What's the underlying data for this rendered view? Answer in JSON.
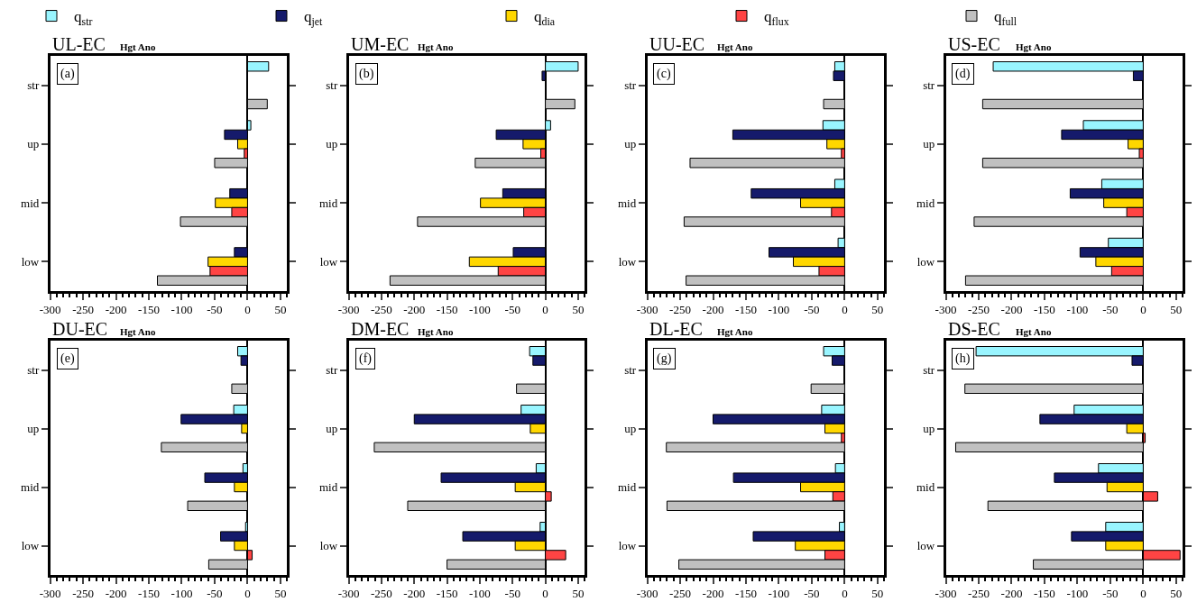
{
  "chart_data": [
    {
      "type": "bar",
      "orientation": "horizontal",
      "title": "UL-EC",
      "subtitle": "Hgt Ano",
      "annotations": [
        "(a)"
      ],
      "categories": [
        "str",
        "up",
        "mid",
        "low"
      ],
      "xlim": [
        -300,
        60
      ],
      "xticks": [
        -300,
        -250,
        -200,
        -150,
        -100,
        -50,
        0,
        50
      ],
      "legend": "top",
      "series": [
        {
          "name": "q$_{str}$",
          "color": "#99f5ff",
          "values": [
            32,
            5,
            null,
            null
          ]
        },
        {
          "name": "q$_{jet}$",
          "color": "#151a6b",
          "values": [
            -1,
            -35,
            -27,
            -20
          ]
        },
        {
          "name": "q$_{dia}$",
          "color": "#ffd700",
          "values": [
            null,
            -15,
            -49,
            -60
          ]
        },
        {
          "name": "q$_{flux}$",
          "color": "#ff4444",
          "values": [
            null,
            -5,
            -24,
            -57
          ]
        },
        {
          "name": "q$_{full}$",
          "color": "#c0c0c0",
          "values": [
            30,
            -50,
            -102,
            -137
          ]
        }
      ]
    },
    {
      "type": "bar",
      "orientation": "horizontal",
      "title": "UM-EC",
      "subtitle": "Hgt Ano",
      "annotations": [
        "(b)"
      ],
      "categories": [
        "str",
        "up",
        "mid",
        "low"
      ],
      "xlim": [
        -300,
        60
      ],
      "xticks": [
        -300,
        -250,
        -200,
        -150,
        -100,
        -50,
        0,
        50
      ],
      "series": [
        {
          "color": "#99f5ff",
          "values": [
            50,
            8,
            null,
            null
          ]
        },
        {
          "color": "#151a6b",
          "values": [
            -5,
            -75,
            -65,
            -49
          ]
        },
        {
          "color": "#ffd700",
          "values": [
            null,
            -34,
            -99,
            -116
          ]
        },
        {
          "color": "#ff4444",
          "values": [
            null,
            -7,
            -33,
            -72
          ]
        },
        {
          "color": "#c0c0c0",
          "values": [
            45,
            -107,
            -195,
            -237
          ]
        }
      ]
    },
    {
      "type": "bar",
      "orientation": "horizontal",
      "title": "UU-EC",
      "subtitle": "Hgt Ano",
      "annotations": [
        "(c)"
      ],
      "categories": [
        "str",
        "up",
        "mid",
        "low"
      ],
      "xlim": [
        -300,
        60
      ],
      "xticks": [
        -300,
        -250,
        -200,
        -150,
        -100,
        -50,
        0,
        50
      ],
      "series": [
        {
          "color": "#99f5ff",
          "values": [
            -15,
            -33,
            -15,
            -10
          ]
        },
        {
          "color": "#151a6b",
          "values": [
            -17,
            -170,
            -142,
            -115
          ]
        },
        {
          "color": "#ffd700",
          "values": [
            null,
            -27,
            -67,
            -78
          ]
        },
        {
          "color": "#ff4444",
          "values": [
            null,
            -5,
            -20,
            -39
          ]
        },
        {
          "color": "#c0c0c0",
          "values": [
            -32,
            -235,
            -244,
            -241
          ]
        }
      ]
    },
    {
      "type": "bar",
      "orientation": "horizontal",
      "title": "US-EC",
      "subtitle": "Hgt Ano",
      "annotations": [
        "(d)"
      ],
      "categories": [
        "str",
        "up",
        "mid",
        "low"
      ],
      "xlim": [
        -300,
        60
      ],
      "xticks": [
        -300,
        -250,
        -200,
        -150,
        -100,
        -50,
        0,
        50
      ],
      "series": [
        {
          "color": "#99f5ff",
          "values": [
            -228,
            -91,
            -63,
            -53
          ]
        },
        {
          "color": "#151a6b",
          "values": [
            -15,
            -124,
            -111,
            -96
          ]
        },
        {
          "color": "#ffd700",
          "values": [
            null,
            -23,
            -60,
            -72
          ]
        },
        {
          "color": "#ff4444",
          "values": [
            null,
            -6,
            -25,
            -48
          ]
        },
        {
          "color": "#c0c0c0",
          "values": [
            -244,
            -244,
            -257,
            -270
          ]
        }
      ]
    },
    {
      "type": "bar",
      "orientation": "horizontal",
      "title": "DU-EC",
      "subtitle": "Hgt Ano",
      "annotations": [
        "(e)"
      ],
      "categories": [
        "str",
        "up",
        "mid",
        "low"
      ],
      "xlim": [
        -300,
        60
      ],
      "xticks": [
        -300,
        -250,
        -200,
        -150,
        -100,
        -50,
        0,
        50
      ],
      "series": [
        {
          "color": "#99f5ff",
          "values": [
            -15,
            -21,
            -7,
            -3
          ]
        },
        {
          "color": "#151a6b",
          "values": [
            -10,
            -101,
            -65,
            -41
          ]
        },
        {
          "color": "#ffd700",
          "values": [
            null,
            -9,
            -20,
            -20
          ]
        },
        {
          "color": "#ff4444",
          "values": [
            null,
            null,
            null,
            7
          ]
        },
        {
          "color": "#c0c0c0",
          "values": [
            -24,
            -131,
            -91,
            -59
          ]
        }
      ]
    },
    {
      "type": "bar",
      "orientation": "horizontal",
      "title": "DM-EC",
      "subtitle": "Hgt Ano",
      "annotations": [
        "(f)"
      ],
      "categories": [
        "str",
        "up",
        "mid",
        "low"
      ],
      "xlim": [
        -300,
        60
      ],
      "xticks": [
        -300,
        -250,
        -200,
        -150,
        -100,
        -50,
        0,
        50
      ],
      "series": [
        {
          "color": "#99f5ff",
          "values": [
            -24,
            -37,
            -14,
            -8
          ]
        },
        {
          "color": "#151a6b",
          "values": [
            -19,
            -200,
            -159,
            -126
          ]
        },
        {
          "color": "#ffd700",
          "values": [
            null,
            -23,
            -46,
            -46
          ]
        },
        {
          "color": "#ff4444",
          "values": [
            null,
            null,
            9,
            31
          ]
        },
        {
          "color": "#c0c0c0",
          "values": [
            -44,
            -261,
            -210,
            -150
          ]
        }
      ]
    },
    {
      "type": "bar",
      "orientation": "horizontal",
      "title": "DL-EC",
      "subtitle": "Hgt Ano",
      "annotations": [
        "(g)"
      ],
      "categories": [
        "str",
        "up",
        "mid",
        "low"
      ],
      "xlim": [
        -300,
        60
      ],
      "xticks": [
        -300,
        -250,
        -200,
        -150,
        -100,
        -50,
        0,
        50
      ],
      "series": [
        {
          "color": "#99f5ff",
          "values": [
            -32,
            -35,
            -14,
            -8
          ]
        },
        {
          "color": "#151a6b",
          "values": [
            -19,
            -200,
            -169,
            -139
          ]
        },
        {
          "color": "#ffd700",
          "values": [
            null,
            -30,
            -67,
            -75
          ]
        },
        {
          "color": "#ff4444",
          "values": [
            null,
            -5,
            -18,
            -30
          ]
        },
        {
          "color": "#c0c0c0",
          "values": [
            -51,
            -271,
            -270,
            -252
          ]
        }
      ]
    },
    {
      "type": "bar",
      "orientation": "horizontal",
      "title": "DS-EC",
      "subtitle": "Hgt Ano",
      "annotations": [
        "(h)"
      ],
      "categories": [
        "str",
        "up",
        "mid",
        "low"
      ],
      "xlim": [
        -300,
        60
      ],
      "xticks": [
        -300,
        -250,
        -200,
        -150,
        -100,
        -50,
        0,
        50
      ],
      "series": [
        {
          "color": "#99f5ff",
          "values": [
            -254,
            -105,
            -68,
            -57
          ]
        },
        {
          "color": "#151a6b",
          "values": [
            -17,
            -157,
            -135,
            -109
          ]
        },
        {
          "color": "#ffd700",
          "values": [
            null,
            -25,
            -55,
            -57
          ]
        },
        {
          "color": "#ff4444",
          "values": [
            null,
            3,
            22,
            56
          ]
        },
        {
          "color": "#c0c0c0",
          "values": [
            -271,
            -285,
            -236,
            -167
          ]
        }
      ]
    }
  ]
}
